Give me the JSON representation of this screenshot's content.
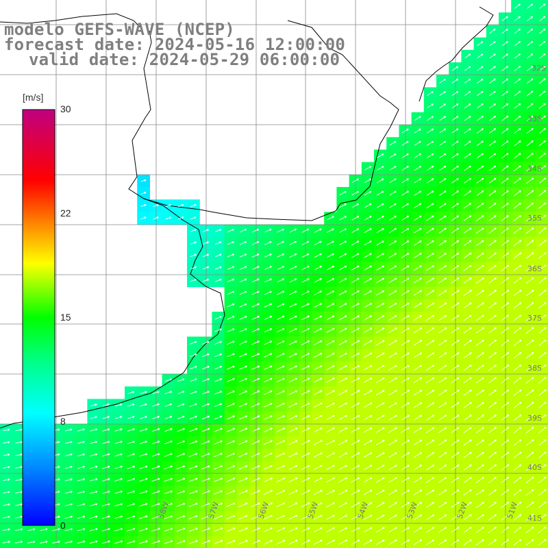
{
  "title": {
    "line1": "modelo GEFS-WAVE (NCEP)",
    "line2": "forecast date: 2024-05-16 12:00:00",
    "line3": "valid date: 2024-05-29 06:00:00"
  },
  "colorbar": {
    "unit": "[m/s]",
    "ticks": [
      "0",
      "8",
      "15",
      "22",
      "30"
    ],
    "tick_values": [
      0,
      8,
      15,
      22,
      30
    ],
    "range": [
      0,
      30
    ],
    "colors": [
      "#0000ff",
      "#0080ff",
      "#00ffff",
      "#00ff80",
      "#00ff00",
      "#ffff00",
      "#ff8000",
      "#ff0000",
      "#c00080"
    ]
  },
  "map": {
    "region": "Río de la Plata / South Atlantic",
    "lat_labels": [
      "32S",
      "33S",
      "34S",
      "35S",
      "36S",
      "37S",
      "38S",
      "39S",
      "40S",
      "41S"
    ],
    "lon_labels": [
      "58W",
      "57W",
      "56W",
      "55W",
      "54W",
      "53W",
      "52W",
      "51W"
    ],
    "variable": "wind speed and direction",
    "land_color": "#ffffff",
    "coast_color": "#000000",
    "grid_color": "#808080"
  }
}
